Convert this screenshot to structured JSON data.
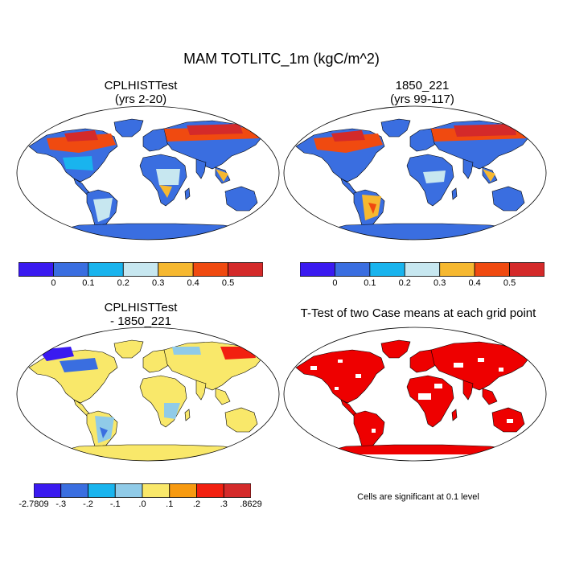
{
  "figure": {
    "title": "MAM TOTLITC_1m (kgC/m^2)"
  },
  "panels": {
    "top_left": {
      "title_line1": "CPLHISTTest",
      "title_line2": "(yrs 2-20)"
    },
    "top_right": {
      "title_line1": "1850_221",
      "title_line2": "(yrs 99-117)"
    },
    "bottom_left": {
      "title_line1": "CPLHISTTest",
      "title_line2": "- 1850_221"
    },
    "bottom_right": {
      "title_line1": "T-Test of two Case means at each grid point",
      "note": "Cells are significant at 0.1 level"
    }
  },
  "colorbar_abs": {
    "colors": [
      "#3a1af0",
      "#3a6ee0",
      "#19b4ee",
      "#c7e7f0",
      "#f6b830",
      "#f04a10",
      "#d42a2a"
    ],
    "labels": [
      "0",
      "0.1",
      "0.2",
      "0.3",
      "0.4",
      "0.5"
    ]
  },
  "colorbar_diff": {
    "colors": [
      "#3a1af0",
      "#3a6ee0",
      "#19b4ee",
      "#90cbe8",
      "#f9e86a",
      "#f79a10",
      "#f22010",
      "#d42a2a"
    ],
    "labels": [
      "-2.7809",
      "-.3",
      "-.2",
      "-.1",
      ".0",
      ".1",
      ".2",
      ".3",
      ".8629"
    ]
  }
}
